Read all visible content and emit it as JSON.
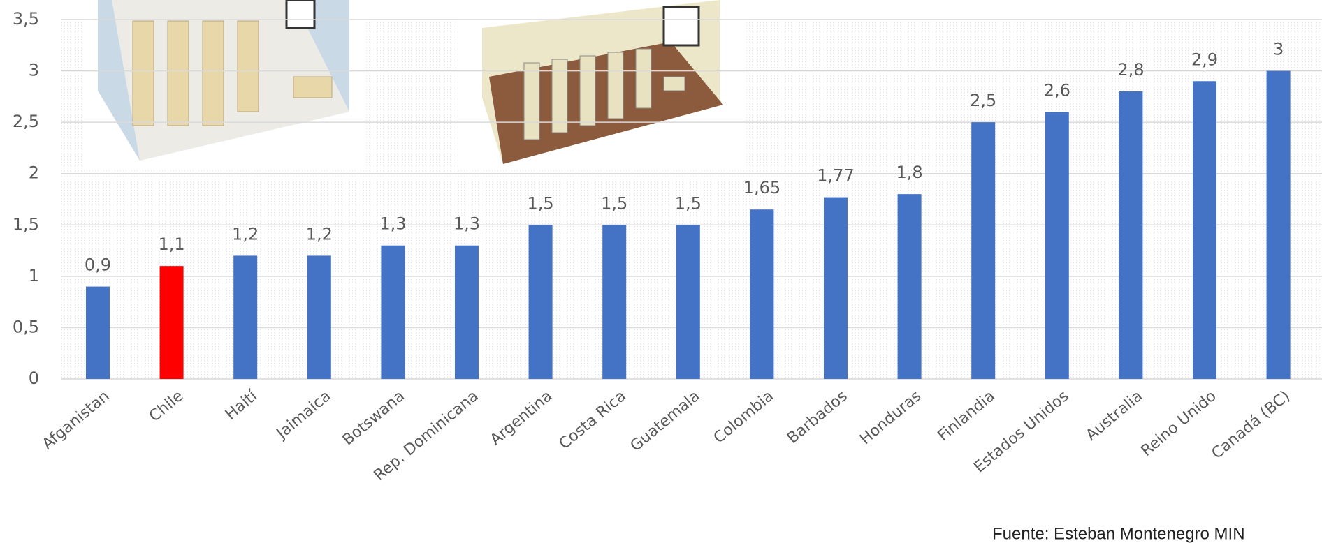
{
  "chart_data": {
    "type": "bar",
    "categories": [
      "Afganistan",
      "Chile",
      "Haití",
      "Jaimaica",
      "Botswana",
      "Rep. Dominicana",
      "Argentina",
      "Costa Rica",
      "Guatemala",
      "Colombia",
      "Barbados",
      "Honduras",
      "Finlandia",
      "Estados Unidos",
      "Australia",
      "Reino Unido",
      "Canadá (BC)"
    ],
    "values": [
      0.9,
      1.1,
      1.2,
      1.2,
      1.3,
      1.3,
      1.5,
      1.5,
      1.5,
      1.65,
      1.77,
      1.8,
      2.5,
      2.6,
      2.8,
      2.9,
      3
    ],
    "value_labels": [
      "0,9",
      "1,1",
      "1,2",
      "1,2",
      "1,3",
      "1,3",
      "1,5",
      "1,5",
      "1,5",
      "1,65",
      "1,77",
      "1,8",
      "2,5",
      "2,6",
      "2,8",
      "2,9",
      "3"
    ],
    "colors": [
      "#4472c4",
      "#ff0000",
      "#4472c4",
      "#4472c4",
      "#4472c4",
      "#4472c4",
      "#4472c4",
      "#4472c4",
      "#4472c4",
      "#4472c4",
      "#4472c4",
      "#4472c4",
      "#4472c4",
      "#4472c4",
      "#4472c4",
      "#4472c4",
      "#4472c4"
    ],
    "ylim": [
      0,
      3.5
    ],
    "yticks": [
      0,
      {
        "value": 0.5,
        "label": "0,5"
      },
      1,
      {
        "value": 1.5,
        "label": "1,5"
      },
      2,
      {
        "value": 2.5,
        "label": "2,5"
      },
      3,
      {
        "value": 3.5,
        "label": "3,5"
      }
    ],
    "grid": true,
    "source": "Fuente: Esteban Montenegro MIN"
  }
}
